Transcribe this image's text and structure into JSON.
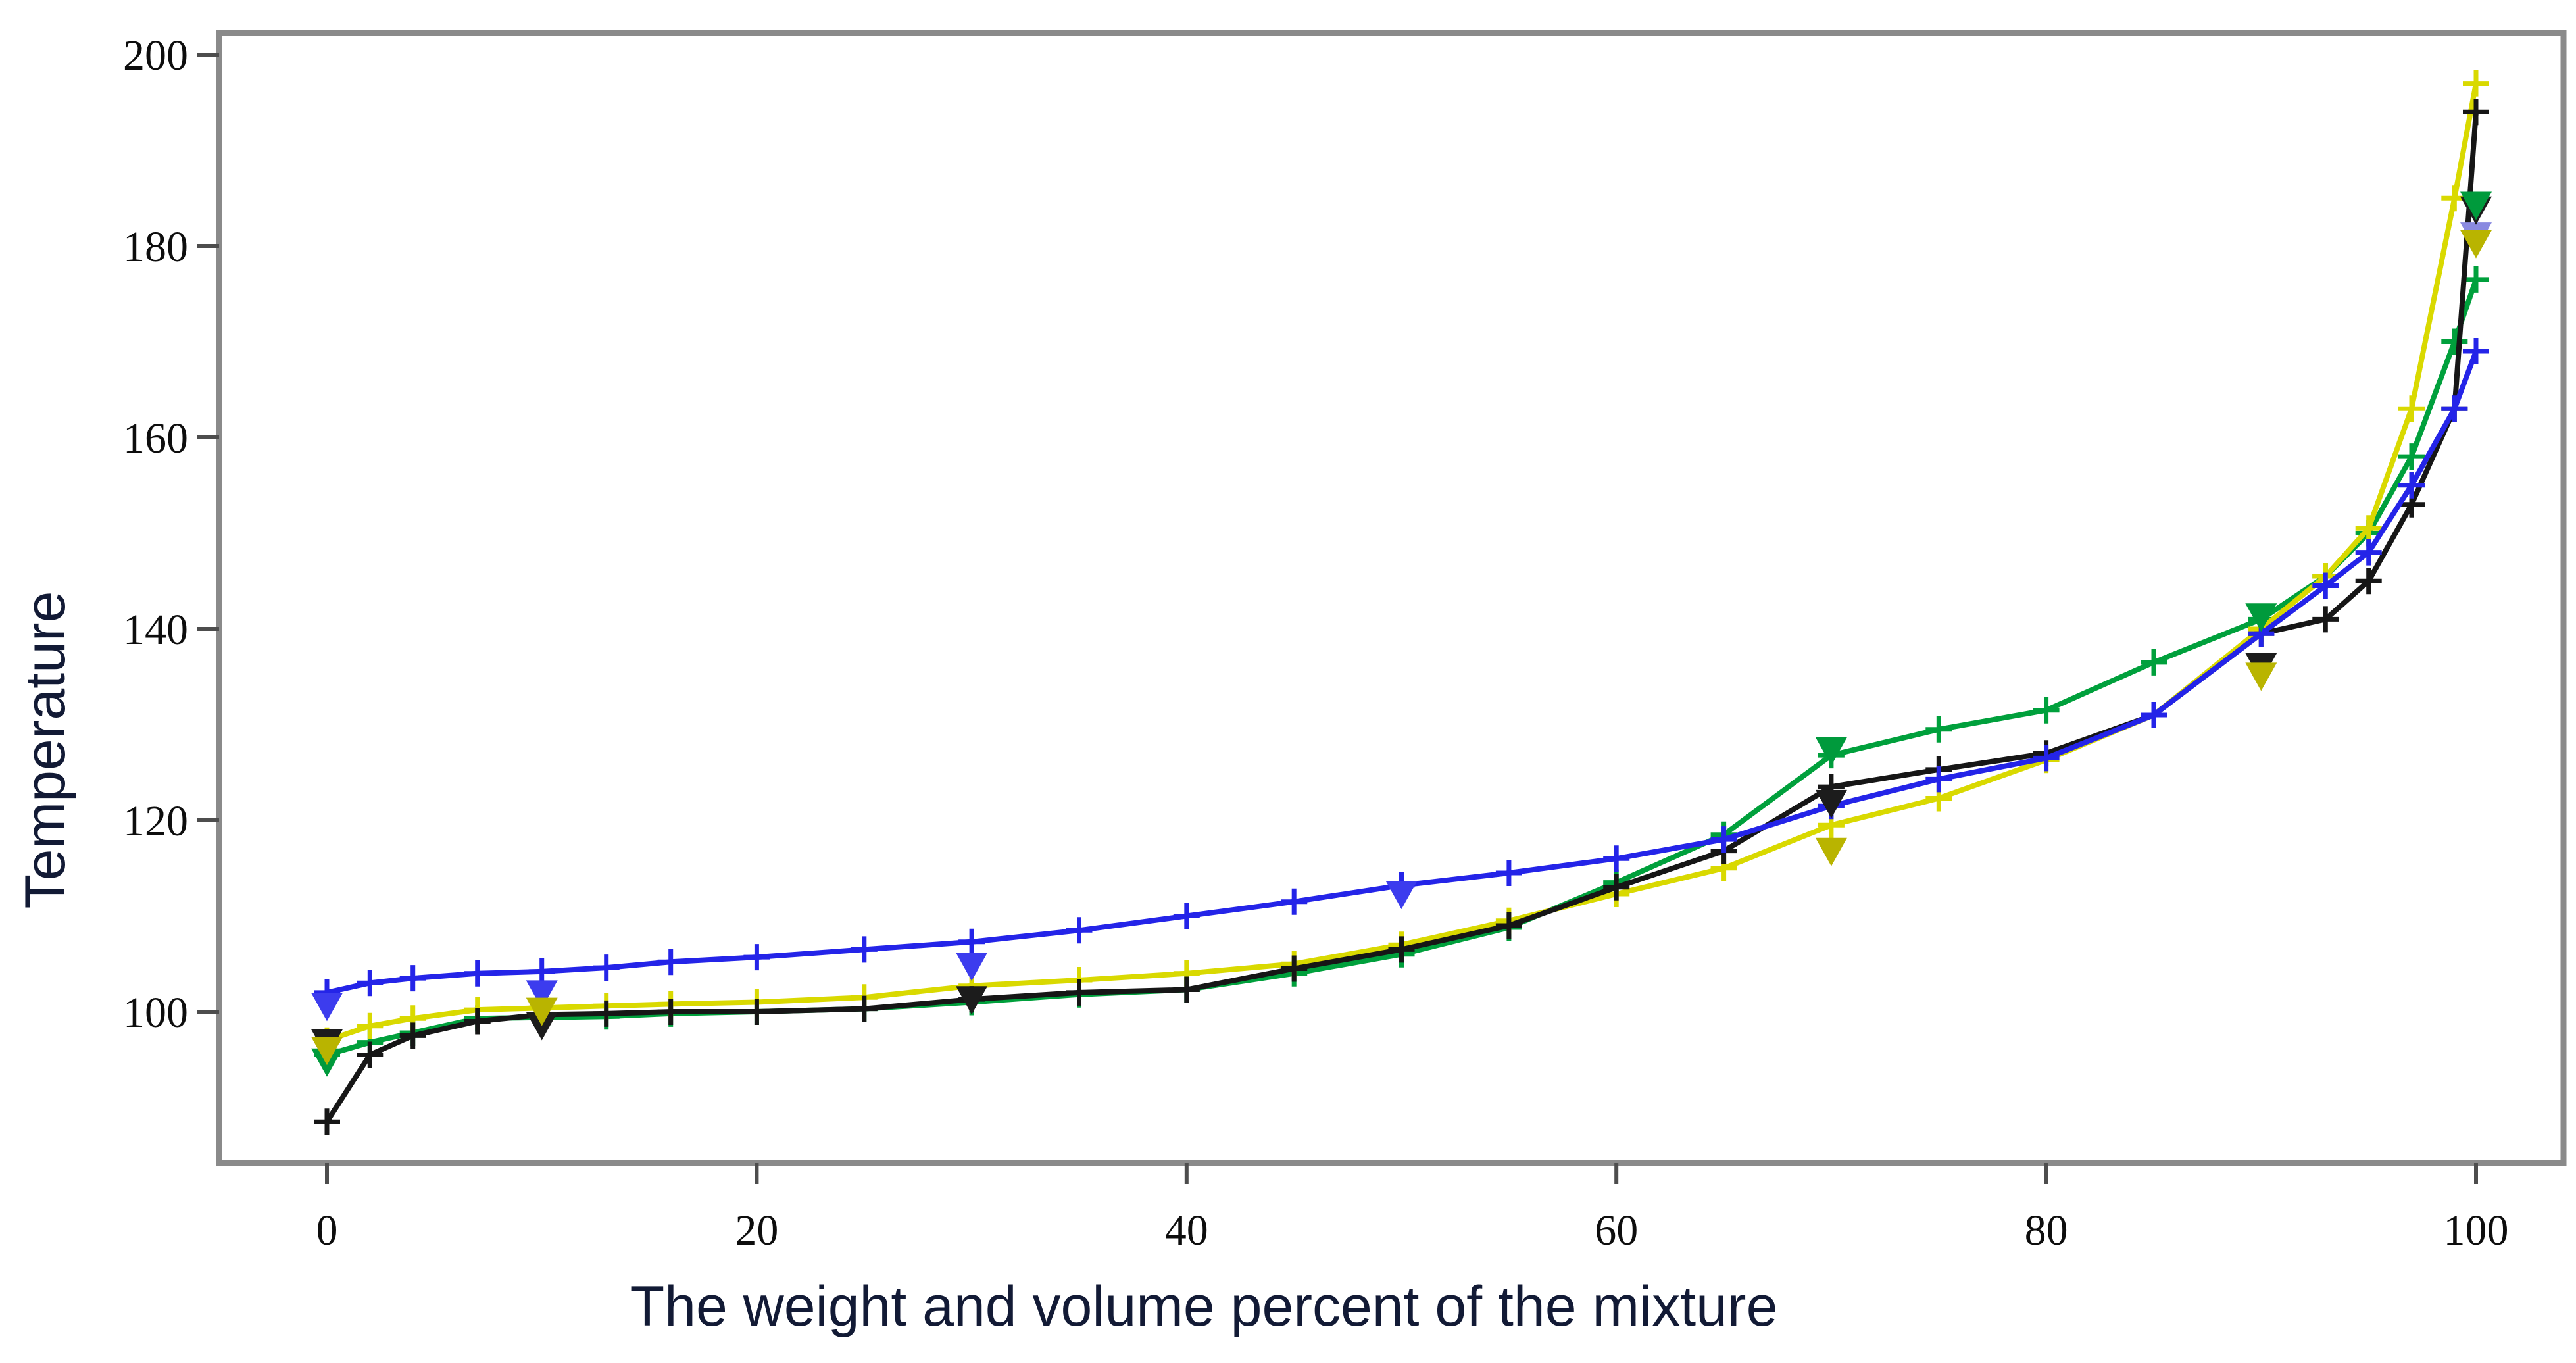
{
  "chart_data": {
    "type": "line",
    "title": "",
    "xlabel": "The weight and volume percent of the mixture",
    "ylabel": "Temperature",
    "xlim": [
      -5,
      104
    ],
    "ylim": [
      84,
      201
    ],
    "x_ticks": [
      "0",
      "20",
      "40",
      "60",
      "80",
      "100"
    ],
    "x_tick_values": [
      0,
      20,
      40,
      60,
      80,
      100
    ],
    "y_ticks": [
      "100",
      "120",
      "140",
      "160",
      "180",
      "200"
    ],
    "y_tick_values": [
      100,
      120,
      140,
      160,
      180,
      200
    ],
    "grid": false,
    "legend_position": "none",
    "x": [
      0,
      2,
      4,
      7,
      10,
      13,
      16,
      20,
      25,
      30,
      35,
      40,
      45,
      50,
      55,
      60,
      65,
      70,
      75,
      80,
      85,
      90,
      93,
      95,
      97,
      99,
      100
    ],
    "series": [
      {
        "name": "green",
        "color": "#00a03c",
        "marker": "plus",
        "values": [
          95.5,
          96.8,
          97.8,
          99.3,
          99.4,
          99.5,
          99.8,
          100,
          100.3,
          101,
          101.8,
          102.3,
          104,
          106,
          108.8,
          113.5,
          118.5,
          126.8,
          129.5,
          131.5,
          136.5,
          141,
          145.5,
          150,
          158,
          170,
          176.5
        ]
      },
      {
        "name": "yellow",
        "color": "#d9d900",
        "marker": "plus",
        "values": [
          97,
          98.5,
          99.3,
          100.2,
          100.4,
          100.6,
          100.8,
          101,
          101.5,
          102.7,
          103.3,
          104,
          105,
          107,
          109.5,
          112.3,
          115,
          119.5,
          122.3,
          126.3,
          131,
          140,
          145.5,
          150.5,
          163,
          185,
          197
        ]
      },
      {
        "name": "black",
        "color": "#161616",
        "marker": "plus",
        "values": [
          88.5,
          95.5,
          97.5,
          99,
          99.7,
          99.8,
          100,
          100,
          100.3,
          101.3,
          102,
          102.3,
          104.5,
          106.5,
          109,
          113,
          116.8,
          123.5,
          125.3,
          127,
          131,
          139.5,
          141,
          145,
          153,
          163,
          194
        ]
      },
      {
        "name": "blue",
        "color": "#2424e8",
        "marker": "plus",
        "values": [
          102,
          103,
          103.5,
          104,
          104.2,
          104.6,
          105.2,
          105.7,
          106.5,
          107.3,
          108.5,
          110,
          111.5,
          113.2,
          114.5,
          116,
          118,
          121.5,
          124.3,
          126.5,
          131,
          139.5,
          144.5,
          148,
          155,
          163,
          169
        ]
      }
    ],
    "outliers": [
      {
        "series": "blue",
        "color": "#3c3cee",
        "marker": "triangle-down",
        "points": [
          [
            0,
            100.8
          ],
          [
            10,
            102.1
          ],
          [
            30,
            105
          ],
          [
            50,
            112.5
          ]
        ]
      },
      {
        "series": "lavender",
        "color": "#8a8ae0",
        "marker": "triangle-down",
        "points": [
          [
            100,
            181.3
          ]
        ]
      },
      {
        "series": "black",
        "color": "#1c1c1c",
        "marker": "triangle-down",
        "points": [
          [
            0,
            97
          ],
          [
            10,
            98.8
          ],
          [
            30,
            101.5
          ],
          [
            70,
            122
          ],
          [
            90,
            136.3
          ],
          [
            100,
            184
          ]
        ]
      },
      {
        "series": "green",
        "color": "#009a3c",
        "marker": "triangle-down",
        "points": [
          [
            0,
            95
          ],
          [
            70,
            127.5
          ],
          [
            90,
            141.5
          ],
          [
            100,
            184.5
          ]
        ]
      },
      {
        "series": "olive",
        "color": "#b9b400",
        "marker": "triangle-down",
        "points": [
          [
            0,
            96.2
          ],
          [
            10,
            100.3
          ],
          [
            70,
            117
          ],
          [
            90,
            135.3
          ],
          [
            100,
            180.5
          ]
        ]
      }
    ]
  },
  "colors": {
    "background": "#ffffff",
    "spine": "#8a8a8a",
    "tick": "#4d4d4d",
    "tick_label": "#0d0d0d",
    "axis_label": "#121a35"
  }
}
